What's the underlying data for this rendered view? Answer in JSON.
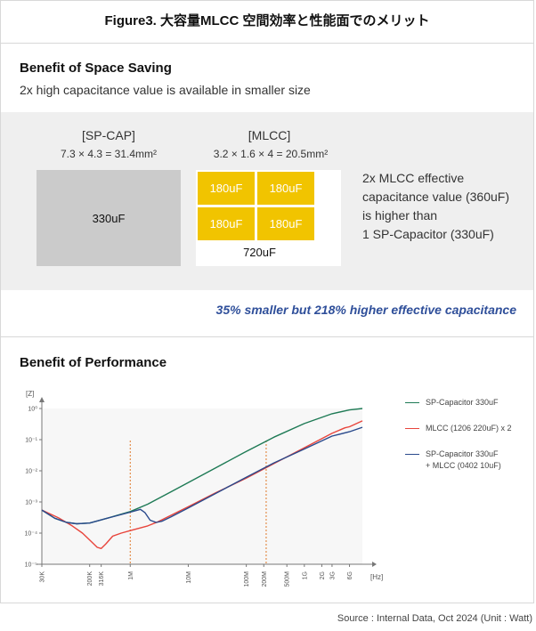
{
  "figure_title": "Figure3. 大容量MLCC 空間効率と性能面でのメリット",
  "space_saving": {
    "title": "Benefit of Space Saving",
    "subtitle": "2x high capacitance value is available in smaller size",
    "sp_cap": {
      "label": "[SP-CAP]",
      "dims": "7.3 × 4.3 = 31.4mm²",
      "value": "330uF"
    },
    "mlcc": {
      "label": "[MLCC]",
      "dims": "3.2 × 1.6 × 4 = 20.5mm²",
      "chips": [
        "180uF",
        "180uF",
        "180uF",
        "180uF"
      ],
      "total": "720uF"
    },
    "note_lines": [
      "2x MLCC effective",
      "capacitance value (360uF)",
      "is higher than",
      "1 SP-Capacitor (330uF)"
    ],
    "highlight": "35% smaller but 218% higher effective capacitance"
  },
  "performance": {
    "title": "Benefit of Performance",
    "colors": {
      "sp": "#1e7a55",
      "mlcc": "#e8453c",
      "combo": "#2a4a8c",
      "marker": "#e0782a"
    }
  },
  "chart_data": {
    "type": "line",
    "title": "",
    "ylabel": "[Z]",
    "xlabel": "[Hz]",
    "x_scale": "log",
    "y_scale": "log",
    "xlim": [
      30000,
      10000000000
    ],
    "ylim": [
      1e-05,
      1
    ],
    "x_ticks": [
      {
        "v": 30000,
        "label": "30K"
      },
      {
        "v": 200000,
        "label": "200K"
      },
      {
        "v": 316000,
        "label": "316K"
      },
      {
        "v": 1000000,
        "label": "1M"
      },
      {
        "v": 10000000,
        "label": "10M"
      },
      {
        "v": 100000000,
        "label": "100M"
      },
      {
        "v": 200000000,
        "label": "200M"
      },
      {
        "v": 500000000,
        "label": "500M"
      },
      {
        "v": 1000000000,
        "label": "1G"
      },
      {
        "v": 2000000000,
        "label": "2G"
      },
      {
        "v": 3000000000,
        "label": "3G"
      },
      {
        "v": 6000000000,
        "label": "6G"
      }
    ],
    "y_ticks": [
      {
        "v": 1,
        "label": "10⁰"
      },
      {
        "v": 0.1,
        "label": "10⁻¹"
      },
      {
        "v": 0.01,
        "label": "10⁻²"
      },
      {
        "v": 0.001,
        "label": "10⁻³"
      },
      {
        "v": 0.0001,
        "label": "10⁻⁴"
      },
      {
        "v": 1e-05,
        "label": "10⁻⁵"
      }
    ],
    "vlines": [
      1000000,
      220000000
    ],
    "series": [
      {
        "name": "SP-Capacitor 330uF",
        "color_key": "sp",
        "points": [
          [
            30000,
            0.00055
          ],
          [
            50000,
            0.0003
          ],
          [
            80000,
            0.00022
          ],
          [
            120000,
            0.0002
          ],
          [
            200000,
            0.00021
          ],
          [
            400000,
            0.0003
          ],
          [
            1000000,
            0.00049
          ],
          [
            2000000,
            0.00085
          ],
          [
            5000000,
            0.0021
          ],
          [
            10000000,
            0.0042
          ],
          [
            30000000,
            0.0126
          ],
          [
            100000000,
            0.042
          ],
          [
            300000000,
            0.12
          ],
          [
            1000000000,
            0.33
          ],
          [
            3000000000,
            0.68
          ],
          [
            6000000000,
            0.9
          ],
          [
            10000000000,
            1.0
          ]
        ]
      },
      {
        "name": "MLCC (1206 220uF) x 2",
        "color_key": "mlcc",
        "points": [
          [
            30000,
            0.00055
          ],
          [
            60000,
            0.0003
          ],
          [
            100000,
            0.00017
          ],
          [
            150000,
            0.0001
          ],
          [
            200000,
            6e-05
          ],
          [
            270000,
            3.5e-05
          ],
          [
            316000,
            3.2e-05
          ],
          [
            380000,
            4.5e-05
          ],
          [
            500000,
            8e-05
          ],
          [
            700000,
            0.0001
          ],
          [
            1000000,
            0.00012
          ],
          [
            2000000,
            0.00017
          ],
          [
            3000000,
            0.00023
          ],
          [
            10000000,
            0.0007
          ],
          [
            30000000,
            0.002
          ],
          [
            100000000,
            0.0058
          ],
          [
            300000000,
            0.017
          ],
          [
            1000000000,
            0.055
          ],
          [
            3000000000,
            0.16
          ],
          [
            5000000000,
            0.24
          ],
          [
            6000000000,
            0.26
          ],
          [
            10000000000,
            0.4
          ]
        ]
      },
      {
        "name": "SP-Capacitor 330uF + MLCC (0402 10uF)",
        "color_key": "combo",
        "points": [
          [
            30000,
            0.00055
          ],
          [
            50000,
            0.0003
          ],
          [
            80000,
            0.00022
          ],
          [
            120000,
            0.0002
          ],
          [
            200000,
            0.00021
          ],
          [
            400000,
            0.0003
          ],
          [
            1000000,
            0.00047
          ],
          [
            1500000,
            0.00058
          ],
          [
            1800000,
            0.00045
          ],
          [
            2200000,
            0.00026
          ],
          [
            2800000,
            0.00022
          ],
          [
            3500000,
            0.00024
          ],
          [
            5000000,
            0.00033
          ],
          [
            10000000,
            0.00064
          ],
          [
            30000000,
            0.0019
          ],
          [
            100000000,
            0.0062
          ],
          [
            300000000,
            0.018
          ],
          [
            1000000000,
            0.05
          ],
          [
            3000000000,
            0.13
          ],
          [
            6000000000,
            0.18
          ],
          [
            10000000000,
            0.25
          ]
        ]
      }
    ]
  },
  "legend": {
    "sp": "SP-Capacitor 330uF",
    "mlcc": "MLCC (1206 220uF) x 2",
    "combo_line1": "SP-Capacitor 330uF",
    "combo_line2": "+ MLCC (0402 10uF)"
  },
  "source": "Source : Internal Data, Oct 2024 (Unit : Watt)"
}
